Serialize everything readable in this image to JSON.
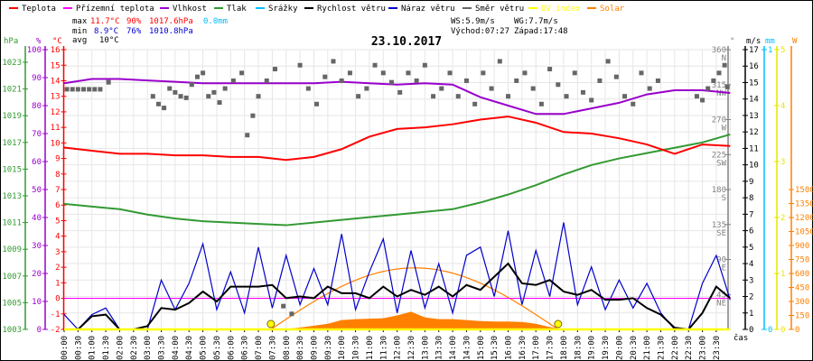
{
  "chart_data": {
    "type": "line",
    "title": "23.10.2017",
    "xlabel": "čas",
    "legend": [
      {
        "name": "Teplota",
        "color": "#ff0000"
      },
      {
        "name": "Přízemní teplota",
        "color": "#ff00ff"
      },
      {
        "name": "Vlhkost",
        "color": "#9900cc"
      },
      {
        "name": "Tlak",
        "color": "#339933"
      },
      {
        "name": "Srážky",
        "color": "#00bfff"
      },
      {
        "name": "Rychlost větru",
        "color": "#000000"
      },
      {
        "name": "Náraz větru",
        "color": "#0000cc"
      },
      {
        "name": "Směr větru",
        "color": "#666666"
      },
      {
        "name": "UV index",
        "color": "#ffff00"
      },
      {
        "name": "Solar",
        "color": "#ff8000"
      }
    ],
    "stats": {
      "max_label": "max",
      "max_temp": "11.7°C",
      "max_hum": "90%",
      "max_press": "1017.6hPa",
      "max_rain": "0.0mm",
      "min_label": "min",
      "min_temp": "8.9°C",
      "min_hum": "76%",
      "min_press": "1010.8hPa",
      "avg_label": "avg",
      "avg_temp": "10°C",
      "ws": "WS:5.9m/s",
      "wg": "WG:7.7m/s",
      "sunrise": "Východ:07:27",
      "sunset": "Západ:17:48"
    },
    "x_ticks": [
      "00:00",
      "00:30",
      "01:00",
      "01:30",
      "02:00",
      "02:30",
      "03:00",
      "03:30",
      "04:00",
      "04:30",
      "05:00",
      "05:30",
      "06:00",
      "06:30",
      "07:00",
      "07:30",
      "08:00",
      "08:30",
      "09:00",
      "09:30",
      "10:00",
      "10:30",
      "11:00",
      "11:30",
      "12:00",
      "12:30",
      "13:00",
      "13:30",
      "14:00",
      "14:30",
      "15:00",
      "15:30",
      "16:00",
      "16:30",
      "17:00",
      "17:30",
      "18:00",
      "18:30",
      "19:00",
      "19:30",
      "20:00",
      "20:30",
      "21:00",
      "21:30",
      "22:00",
      "22:30",
      "23:00",
      "23:30"
    ],
    "axes": {
      "pressure": {
        "unit": "hPa",
        "range": [
          1003,
          1023
        ],
        "ticks": [
          "1003",
          "1005",
          "1007",
          "1009",
          "1011",
          "1013",
          "1015",
          "1017",
          "1019",
          "1021",
          "1023"
        ]
      },
      "humidity": {
        "unit": "%",
        "range": [
          0,
          100
        ],
        "ticks": [
          "0",
          "10",
          "20",
          "30",
          "40",
          "50",
          "60",
          "70",
          "80",
          "90",
          "100"
        ]
      },
      "temperature": {
        "unit": "°C",
        "range": [
          -2,
          16
        ],
        "ticks": [
          "-2",
          "-1",
          "0",
          "1",
          "2",
          "3",
          "4",
          "5",
          "6",
          "7",
          "8",
          "9",
          "10",
          "11",
          "12",
          "13",
          "14",
          "15",
          "16"
        ]
      },
      "direction": {
        "unit": "°",
        "range": [
          0,
          360
        ],
        "ticks": [
          [
            "45",
            "NE"
          ],
          [
            "90",
            "E"
          ],
          [
            "135",
            "SE"
          ],
          [
            "180",
            "S"
          ],
          [
            "225",
            "SW"
          ],
          [
            "270",
            "W"
          ],
          [
            "315",
            "NW"
          ],
          [
            "360",
            "N"
          ]
        ]
      },
      "wind": {
        "unit": "m/s",
        "range": [
          0,
          17
        ],
        "ticks": [
          "0",
          "1",
          "2",
          "3",
          "4",
          "5",
          "6",
          "7",
          "8",
          "9",
          "10",
          "11",
          "12",
          "13",
          "14",
          "15",
          "16",
          "17"
        ]
      },
      "rain": {
        "unit": "mm",
        "range": [
          0,
          1
        ],
        "ticks": [
          "0",
          "1"
        ]
      },
      "uv": {
        "unit": "",
        "range": [
          0,
          5
        ],
        "ticks": [
          "0",
          "1",
          "2",
          "3",
          "4",
          "5"
        ]
      },
      "solar": {
        "unit": "W",
        "range": [
          0,
          1500
        ],
        "ticks": [
          "0",
          "150",
          "300",
          "450",
          "600",
          "750",
          "900",
          "1050",
          "1200",
          "1350",
          "1500"
        ]
      }
    },
    "hourly_hours": [
      0,
      1,
      2,
      3,
      4,
      5,
      6,
      7,
      8,
      9,
      10,
      11,
      12,
      13,
      14,
      15,
      16,
      17,
      18,
      19,
      20,
      21,
      22,
      23,
      24
    ],
    "temperature": [
      9.7,
      9.5,
      9.3,
      9.3,
      9.2,
      9.2,
      9.1,
      9.1,
      8.9,
      9.1,
      9.6,
      10.4,
      10.9,
      11.0,
      11.2,
      11.5,
      11.7,
      11.3,
      10.7,
      10.6,
      10.3,
      9.9,
      9.3,
      9.9,
      9.8
    ],
    "ground_temperature": [
      0,
      0,
      0,
      0,
      0,
      0,
      0,
      0,
      0,
      0,
      0,
      0,
      0,
      0,
      0,
      0,
      0,
      0,
      0,
      0,
      0,
      0,
      0,
      0,
      0
    ],
    "humidity": [
      88,
      89.5,
      89.5,
      89,
      88.5,
      88,
      88,
      88,
      88,
      88,
      88.5,
      88,
      87.5,
      88,
      87.5,
      83,
      80,
      77,
      77,
      79,
      81,
      84,
      85.5,
      85.5,
      84.5
    ],
    "pressure": [
      1012.4,
      1012.2,
      1012.0,
      1011.6,
      1011.3,
      1011.1,
      1011.0,
      1010.9,
      1010.8,
      1011.0,
      1011.2,
      1011.4,
      1011.6,
      1011.8,
      1012.0,
      1012.5,
      1013.1,
      1013.8,
      1014.6,
      1015.3,
      1015.8,
      1016.2,
      1016.6,
      1017.0,
      1017.6
    ],
    "rain": [
      0,
      0,
      0,
      0,
      0,
      0,
      0,
      0,
      0,
      0,
      0,
      0,
      0,
      0,
      0,
      0,
      0,
      0,
      0,
      0,
      0,
      0,
      0,
      0,
      0
    ],
    "uv": [
      0,
      0,
      0,
      0,
      0,
      0,
      0,
      0,
      0,
      0,
      0,
      0,
      0,
      0,
      0,
      0,
      0,
      0,
      0,
      0,
      0,
      0,
      0,
      0,
      0
    ],
    "halfhour_step": 0.5,
    "wind_speed": [
      0,
      0,
      0.8,
      0.9,
      0,
      0,
      0.2,
      1.3,
      1.2,
      1.6,
      2.3,
      1.7,
      2.6,
      2.6,
      2.6,
      2.7,
      1.9,
      2.0,
      1.9,
      2.6,
      2.2,
      2.2,
      1.9,
      2.6,
      2.0,
      2.4,
      2.1,
      2.6,
      2.0,
      2.7,
      2.4,
      3.2,
      4.0,
      2.8,
      2.7,
      3.0,
      2.3,
      2.1,
      2.4,
      1.8,
      1.8,
      1.9,
      1.3,
      0.9,
      0.1,
      0,
      1.0,
      2.6,
      1.9
    ],
    "wind_gust": [
      0.9,
      0,
      0.9,
      1.3,
      0,
      0,
      0,
      3.0,
      1.2,
      2.8,
      5.2,
      1.2,
      3.5,
      1.0,
      5.0,
      1.3,
      4.5,
      1.5,
      3.7,
      1.5,
      5.8,
      1.2,
      3.5,
      5.5,
      1.0,
      4.8,
      1.3,
      4.0,
      1.0,
      4.5,
      5.0,
      2.0,
      6.0,
      1.5,
      4.8,
      2.0,
      6.5,
      1.5,
      3.8,
      1.2,
      3.0,
      1.3,
      2.8,
      1.0,
      0,
      0,
      2.8,
      4.5,
      1.8
    ],
    "solar": [
      0,
      0,
      0,
      0,
      0,
      0,
      0,
      0,
      0,
      0,
      0,
      0,
      0,
      0,
      0,
      0,
      5,
      20,
      40,
      60,
      100,
      110,
      115,
      120,
      150,
      190,
      130,
      110,
      110,
      100,
      90,
      85,
      85,
      80,
      60,
      25,
      0,
      0,
      0,
      0,
      0,
      0,
      0,
      0,
      0,
      0,
      0,
      0,
      0
    ],
    "solar_theoretical_peak": 660,
    "sunrise_hour": 7.45,
    "sunset_hour": 17.8,
    "wind_direction": [
      [
        0.1,
        309
      ],
      [
        0.3,
        309
      ],
      [
        0.5,
        309
      ],
      [
        0.7,
        309
      ],
      [
        0.9,
        309
      ],
      [
        1.1,
        309
      ],
      [
        1.3,
        309
      ],
      [
        1.6,
        318
      ],
      [
        3.2,
        300
      ],
      [
        3.4,
        290
      ],
      [
        3.6,
        285
      ],
      [
        3.8,
        310
      ],
      [
        4.0,
        305
      ],
      [
        4.2,
        300
      ],
      [
        4.4,
        298
      ],
      [
        4.6,
        315
      ],
      [
        4.8,
        325
      ],
      [
        5.0,
        330
      ],
      [
        5.2,
        300
      ],
      [
        5.4,
        305
      ],
      [
        5.6,
        292
      ],
      [
        5.8,
        310
      ],
      [
        6.1,
        320
      ],
      [
        6.4,
        330
      ],
      [
        6.6,
        250
      ],
      [
        6.8,
        275
      ],
      [
        7.0,
        300
      ],
      [
        7.3,
        320
      ],
      [
        7.6,
        335
      ],
      [
        7.9,
        30
      ],
      [
        8.2,
        20
      ],
      [
        8.5,
        340
      ],
      [
        8.8,
        310
      ],
      [
        9.1,
        290
      ],
      [
        9.4,
        325
      ],
      [
        9.7,
        345
      ],
      [
        10.0,
        320
      ],
      [
        10.3,
        330
      ],
      [
        10.6,
        300
      ],
      [
        10.9,
        310
      ],
      [
        11.2,
        340
      ],
      [
        11.5,
        330
      ],
      [
        11.8,
        318
      ],
      [
        12.1,
        305
      ],
      [
        12.4,
        330
      ],
      [
        12.7,
        320
      ],
      [
        13.0,
        340
      ],
      [
        13.3,
        300
      ],
      [
        13.6,
        310
      ],
      [
        13.9,
        330
      ],
      [
        14.2,
        300
      ],
      [
        14.5,
        320
      ],
      [
        14.8,
        290
      ],
      [
        15.1,
        330
      ],
      [
        15.4,
        310
      ],
      [
        15.7,
        345
      ],
      [
        16.0,
        300
      ],
      [
        16.3,
        320
      ],
      [
        16.6,
        330
      ],
      [
        16.9,
        310
      ],
      [
        17.2,
        290
      ],
      [
        17.5,
        335
      ],
      [
        17.8,
        315
      ],
      [
        18.1,
        300
      ],
      [
        18.4,
        330
      ],
      [
        18.7,
        305
      ],
      [
        19.0,
        295
      ],
      [
        19.3,
        320
      ],
      [
        19.6,
        345
      ],
      [
        19.9,
        325
      ],
      [
        20.2,
        300
      ],
      [
        20.5,
        290
      ],
      [
        20.8,
        330
      ],
      [
        21.1,
        310
      ],
      [
        21.4,
        320
      ],
      [
        22.8,
        300
      ],
      [
        23.0,
        295
      ],
      [
        23.2,
        310
      ],
      [
        23.4,
        320
      ],
      [
        23.6,
        330
      ],
      [
        23.8,
        340
      ],
      [
        23.9,
        312
      ]
    ]
  }
}
